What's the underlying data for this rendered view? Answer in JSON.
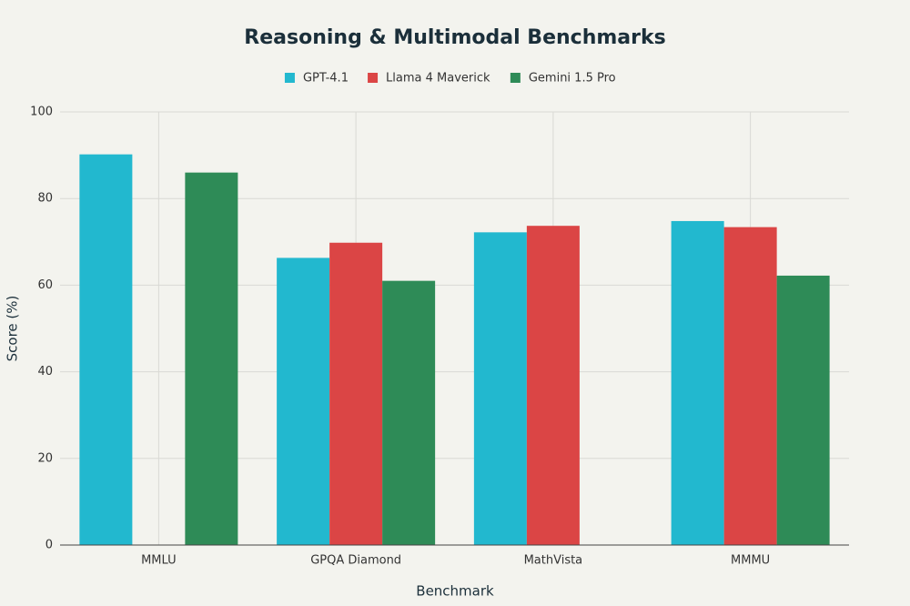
{
  "chart_data": {
    "type": "bar",
    "title": "Reasoning & Multimodal Benchmarks",
    "x_label": "Benchmark",
    "y_label": "Score (%)",
    "categories": [
      "MMLU",
      "GPQA Diamond",
      "MathVista",
      "MMMU"
    ],
    "series": [
      {
        "name": "GPT-4.1",
        "color": "#22b8cf",
        "values": [
          90.2,
          66.3,
          72.2,
          74.8
        ]
      },
      {
        "name": "Llama 4 Maverick",
        "color": "#db4545",
        "values": [
          null,
          69.8,
          73.7,
          73.4
        ]
      },
      {
        "name": "Gemini 1.5 Pro",
        "color": "#2e8b57",
        "values": [
          86,
          61,
          null,
          62.2
        ]
      }
    ],
    "ylim": [
      0,
      100
    ],
    "yticks": [
      0,
      20,
      40,
      60,
      80,
      100
    ],
    "grid": true
  }
}
